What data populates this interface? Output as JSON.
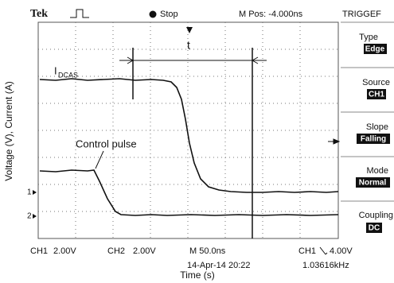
{
  "header": {
    "brand": "Tek",
    "run_state": "Stop",
    "m_pos": "M Pos: -4.000ns",
    "menu_title": "TRIGGEF"
  },
  "menu": [
    {
      "label": "Type",
      "value": "Edge"
    },
    {
      "label": "Source",
      "value": "CH1"
    },
    {
      "label": "Slope",
      "value": "Falling"
    },
    {
      "label": "Mode",
      "value": "Normal"
    },
    {
      "label": "Coupling",
      "value": "DC"
    }
  ],
  "footer": {
    "ch1": "CH1",
    "ch1_scale": "2.00V",
    "ch2": "CH2",
    "ch2_scale": "2.00V",
    "timebase": "M 50.0ns",
    "trigger_source": "CH1",
    "trigger_level": "4.00V",
    "date": "14-Apr-14 20:22",
    "frequency": "1.03616kHz"
  },
  "labels": {
    "y_axis": "Voltage (V), Current (A)",
    "x_axis": "Time (s)",
    "interval": "t",
    "current": "I",
    "current_sub": "DCAS",
    "control_pulse": "Control pulse",
    "ch1_marker": "1",
    "ch2_marker": "2"
  }
}
